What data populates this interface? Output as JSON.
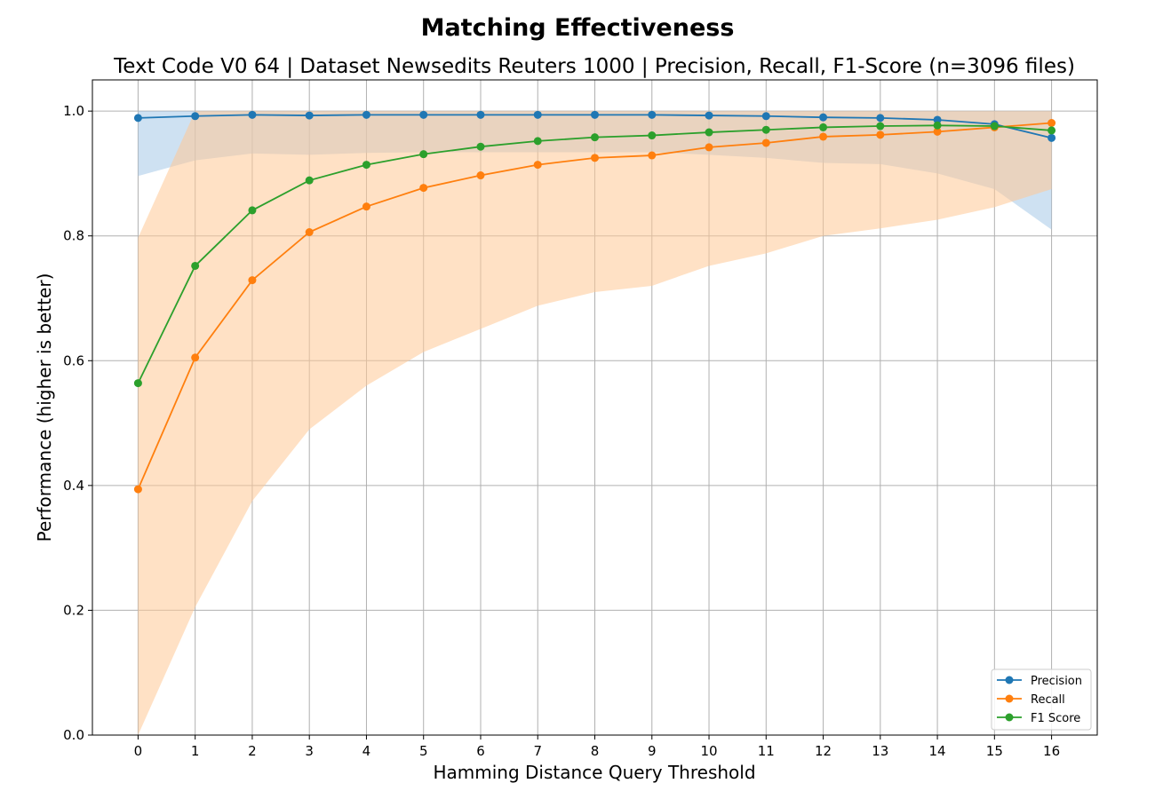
{
  "chart_data": {
    "type": "line",
    "title": "Matching Effectiveness",
    "subtitle": "Text Code V0 64 | Dataset Newsedits Reuters 1000 | Precision, Recall, F1-Score (n=3096 files)",
    "xlabel": "Hamming Distance Query Threshold",
    "ylabel": "Performance (higher is better)",
    "x": [
      0,
      1,
      2,
      3,
      4,
      5,
      6,
      7,
      8,
      9,
      10,
      11,
      12,
      13,
      14,
      15,
      16
    ],
    "xlim": [
      -0.8,
      16.8
    ],
    "ylim": [
      0.0,
      1.05
    ],
    "yticks": [
      0.0,
      0.2,
      0.4,
      0.6,
      0.8,
      1.0
    ],
    "ytick_labels": [
      "0.0",
      "0.2",
      "0.4",
      "0.6",
      "0.8",
      "1.0"
    ],
    "grid": true,
    "legend_position": "lower-right",
    "series": [
      {
        "name": "Precision",
        "color": "#1f77b4",
        "band_color": "#a6c8e8",
        "values": [
          0.989,
          0.992,
          0.994,
          0.993,
          0.994,
          0.994,
          0.994,
          0.994,
          0.994,
          0.994,
          0.993,
          0.992,
          0.99,
          0.989,
          0.986,
          0.979,
          0.957
        ],
        "band_lower": [
          0.896,
          0.921,
          0.932,
          0.93,
          0.933,
          0.934,
          0.934,
          0.934,
          0.934,
          0.934,
          0.93,
          0.925,
          0.917,
          0.915,
          0.9,
          0.875,
          0.81
        ],
        "band_upper": [
          1.0,
          1.0,
          1.0,
          1.0,
          1.0,
          1.0,
          1.0,
          1.0,
          1.0,
          1.0,
          1.0,
          1.0,
          1.0,
          1.0,
          1.0,
          1.0,
          1.0
        ]
      },
      {
        "name": "Recall",
        "color": "#ff7f0e",
        "band_color": "#ffc896",
        "values": [
          0.394,
          0.605,
          0.729,
          0.806,
          0.847,
          0.877,
          0.897,
          0.914,
          0.925,
          0.929,
          0.942,
          0.949,
          0.959,
          0.962,
          0.967,
          0.974,
          0.981
        ],
        "band_lower": [
          0.0,
          0.205,
          0.375,
          0.49,
          0.56,
          0.614,
          0.651,
          0.688,
          0.71,
          0.72,
          0.752,
          0.772,
          0.8,
          0.812,
          0.826,
          0.846,
          0.875
        ],
        "band_upper": [
          0.797,
          1.0,
          1.0,
          1.0,
          1.0,
          1.0,
          1.0,
          1.0,
          1.0,
          1.0,
          1.0,
          1.0,
          1.0,
          1.0,
          1.0,
          1.0,
          1.0
        ]
      },
      {
        "name": "F1 Score",
        "color": "#2ca02c",
        "values": [
          0.564,
          0.752,
          0.841,
          0.889,
          0.914,
          0.931,
          0.943,
          0.952,
          0.958,
          0.961,
          0.966,
          0.97,
          0.974,
          0.976,
          0.977,
          0.976,
          0.969
        ]
      }
    ]
  }
}
